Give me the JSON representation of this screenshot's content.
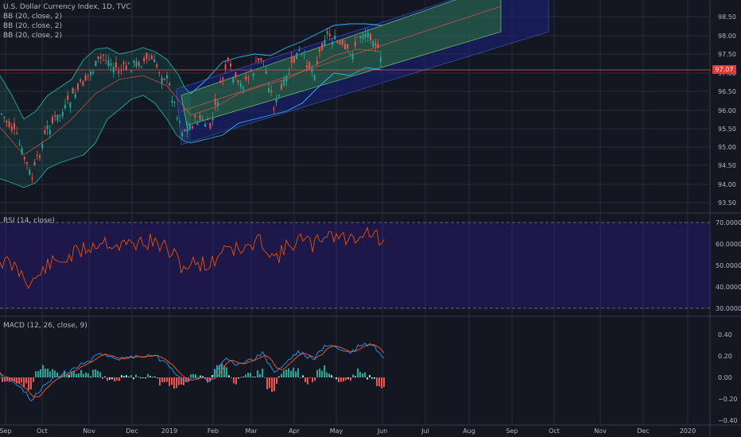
{
  "chart": {
    "title": "U.S. Dollar Currency Index, 1D, TVC",
    "indicators": [
      "BB (20, close, 2)",
      "BB (20, close, 2)",
      "BB (20, close, 2)"
    ],
    "last_price": "97.07",
    "price_axis": [
      "98.50",
      "98.00",
      "97.50",
      "97.00",
      "96.50",
      "96.00",
      "95.50",
      "95.00",
      "94.50",
      "94.00",
      "93.50"
    ],
    "x_axis": [
      "Sep",
      "Oct",
      "Nov",
      "Dec",
      "2019",
      "Feb",
      "Mar",
      "Apr",
      "May",
      "Jun",
      "Jul",
      "Aug",
      "Sep",
      "Oct",
      "Nov",
      "Dec",
      "2020"
    ]
  },
  "rsi": {
    "title": "RSI (14, close)",
    "axis": [
      "70.0000",
      "60.0000",
      "50.0000",
      "40.0000",
      "30.0000"
    ]
  },
  "macd": {
    "title": "MACD (12, 26, close, 9)",
    "axis": [
      "0.40",
      "0.20",
      "0.00",
      "−0.20",
      "−0.40"
    ]
  },
  "colors": {
    "background": "#131722",
    "up": "#26a69a",
    "down": "#ef5350",
    "channel_green": "#2e7d32",
    "channel_blue": "#1a237e",
    "rsi_line": "#e65100",
    "macd_line": "#2196f3",
    "signal_line": "#ff5722"
  }
}
